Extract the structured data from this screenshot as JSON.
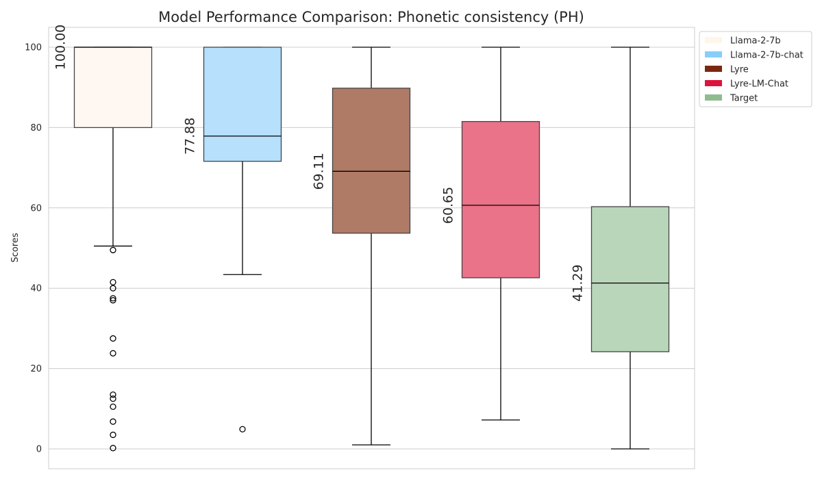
{
  "chart_data": {
    "type": "box",
    "title": "Model Performance Comparison: Phonetic consistency (PH)",
    "xlabel": "",
    "ylabel": "Scores",
    "ylim": [
      -5,
      105
    ],
    "yticks": [
      0,
      20,
      40,
      60,
      80,
      100
    ],
    "grid": "horizontal",
    "legend_position": "outside-top-right",
    "series": [
      {
        "name": "Llama-2-7b",
        "color": "#FFF5EB",
        "box_color": "#FFF8F2",
        "q1": 80.0,
        "median": 100.0,
        "q3": 100.0,
        "whisker_low": 50.5,
        "whisker_high": 100.0,
        "median_label": "100.00",
        "outliers": [
          49.5,
          41.5,
          40.0,
          37.5,
          37.0,
          27.5,
          23.8,
          13.5,
          12.5,
          10.5,
          6.8,
          3.5,
          0.2
        ]
      },
      {
        "name": "Llama-2-7b-chat",
        "color": "#87CEFA",
        "box_color": "#B6E0FB",
        "q1": 71.6,
        "median": 77.88,
        "q3": 100.0,
        "whisker_low": 43.4,
        "whisker_high": 100.0,
        "median_label": "77.88",
        "outliers": [
          4.9
        ]
      },
      {
        "name": "Lyre",
        "color": "#7B2710",
        "box_color": "#AF7A66",
        "q1": 53.7,
        "median": 69.11,
        "q3": 89.8,
        "whisker_low": 1.0,
        "whisker_high": 100.0,
        "median_label": "69.11",
        "outliers": []
      },
      {
        "name": "Lyre-LM-Chat",
        "color": "#DC143C",
        "box_color": "#EA7389",
        "q1": 42.6,
        "median": 60.65,
        "q3": 81.5,
        "whisker_low": 7.2,
        "whisker_high": 100.0,
        "median_label": "60.65",
        "outliers": []
      },
      {
        "name": "Target",
        "color": "#8FBC8F",
        "box_color": "#B9D6BB",
        "q1": 24.2,
        "median": 41.29,
        "q3": 60.3,
        "whisker_low": 0.0,
        "whisker_high": 100.0,
        "median_label": "41.29",
        "outliers": []
      }
    ]
  }
}
